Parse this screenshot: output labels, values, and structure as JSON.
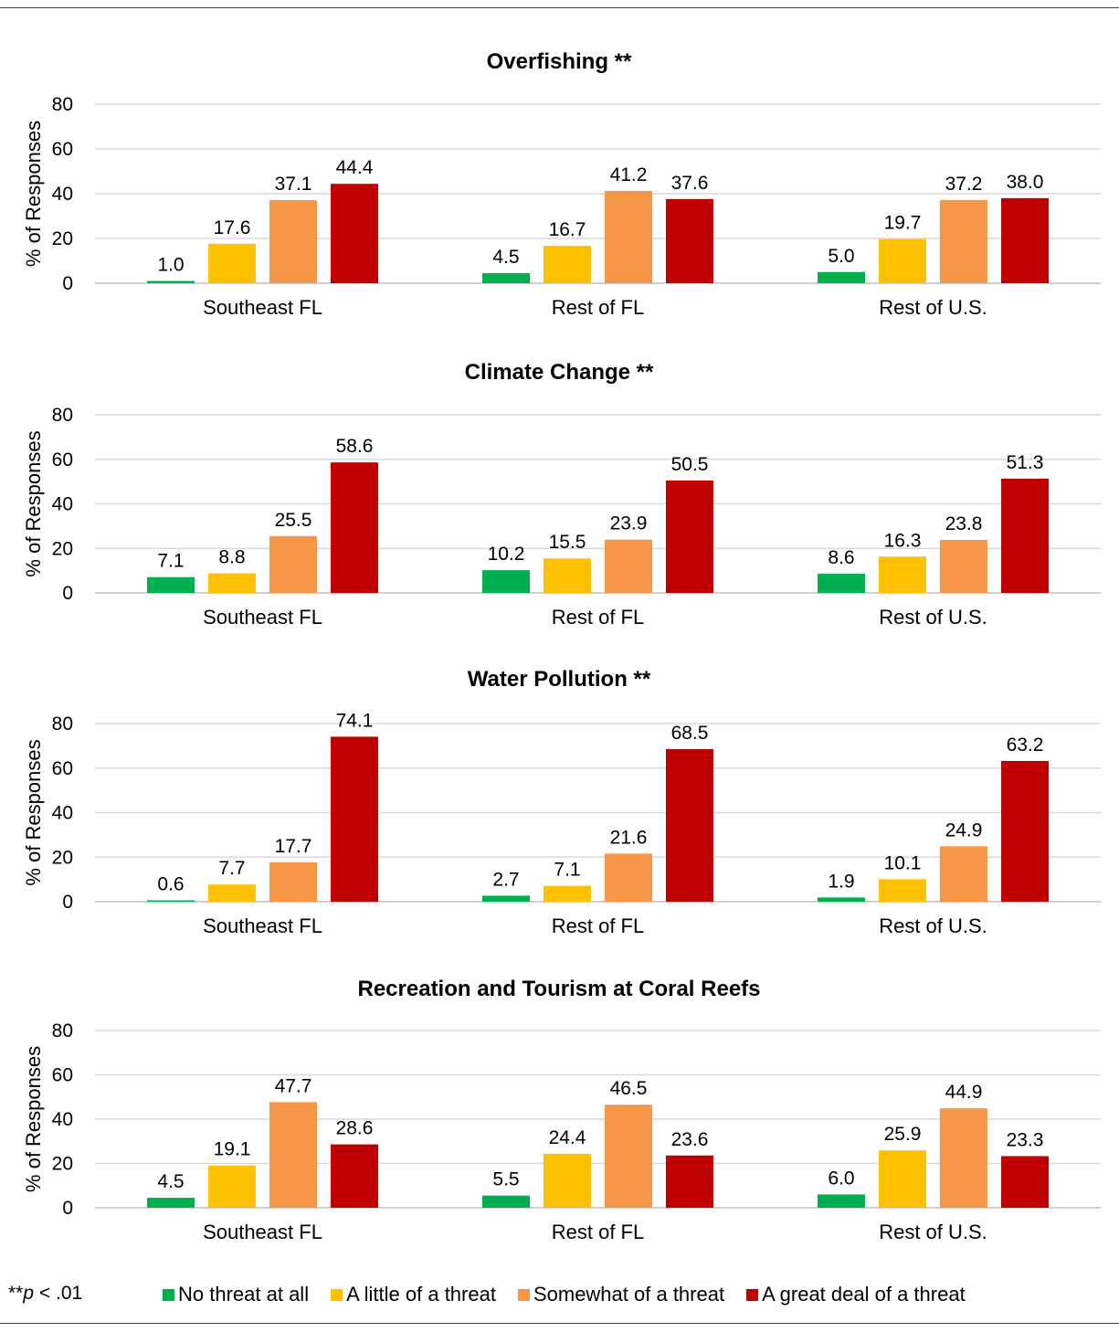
{
  "colors": {
    "none": "#00b050",
    "little": "#ffc000",
    "somewhat": "#f79646",
    "great": "#c00000",
    "grid": "#d9d9d9"
  },
  "chart_data": [
    {
      "type": "bar",
      "title": "Overfishing **",
      "ylabel": "% of Responses",
      "ylim": [
        0,
        80
      ],
      "yticks": [
        0,
        20,
        40,
        60,
        80
      ],
      "categories": [
        "Southeast FL",
        "Rest of FL",
        "Rest of U.S."
      ],
      "series": [
        {
          "name": "No threat at all",
          "values": [
            1.0,
            4.5,
            5.0
          ]
        },
        {
          "name": "A little of a threat",
          "values": [
            17.6,
            16.7,
            19.7
          ]
        },
        {
          "name": "Somewhat of a threat",
          "values": [
            37.1,
            41.2,
            37.2
          ]
        },
        {
          "name": "A great deal of a threat",
          "values": [
            44.4,
            37.6,
            38.0
          ]
        }
      ]
    },
    {
      "type": "bar",
      "title": "Climate Change **",
      "ylabel": "% of Responses",
      "ylim": [
        0,
        80
      ],
      "yticks": [
        0,
        20,
        40,
        60,
        80
      ],
      "categories": [
        "Southeast FL",
        "Rest of FL",
        "Rest of U.S."
      ],
      "series": [
        {
          "name": "No threat at all",
          "values": [
            7.1,
            10.2,
            8.6
          ]
        },
        {
          "name": "A little of a threat",
          "values": [
            8.8,
            15.5,
            16.3
          ]
        },
        {
          "name": "Somewhat of a threat",
          "values": [
            25.5,
            23.9,
            23.8
          ]
        },
        {
          "name": "A great deal of a threat",
          "values": [
            58.6,
            50.5,
            51.3
          ]
        }
      ]
    },
    {
      "type": "bar",
      "title": "Water Pollution **",
      "ylabel": "% of Responses",
      "ylim": [
        0,
        80
      ],
      "yticks": [
        0,
        20,
        40,
        60,
        80
      ],
      "categories": [
        "Southeast FL",
        "Rest of FL",
        "Rest of U.S."
      ],
      "series": [
        {
          "name": "No threat at all",
          "values": [
            0.6,
            2.7,
            1.9
          ]
        },
        {
          "name": "A little of a threat",
          "values": [
            7.7,
            7.1,
            10.1
          ]
        },
        {
          "name": "Somewhat of a threat",
          "values": [
            17.7,
            21.6,
            24.9
          ]
        },
        {
          "name": "A great deal of a threat",
          "values": [
            74.1,
            68.5,
            63.2
          ]
        }
      ]
    },
    {
      "type": "bar",
      "title": "Recreation and Tourism at Coral Reefs",
      "ylabel": "% of Responses",
      "ylim": [
        0,
        80
      ],
      "yticks": [
        0,
        20,
        40,
        60,
        80
      ],
      "categories": [
        "Southeast FL",
        "Rest of FL",
        "Rest of U.S."
      ],
      "series": [
        {
          "name": "No threat at all",
          "values": [
            4.5,
            5.5,
            6.0
          ]
        },
        {
          "name": "A little of a threat",
          "values": [
            19.1,
            24.4,
            25.9
          ]
        },
        {
          "name": "Somewhat of a threat",
          "values": [
            47.7,
            46.5,
            44.9
          ]
        },
        {
          "name": "A great deal of a threat",
          "values": [
            28.6,
            23.6,
            23.3
          ]
        }
      ]
    }
  ],
  "legend": {
    "items": [
      {
        "label": "No threat at all",
        "color_key": "none"
      },
      {
        "label": "A little of a threat",
        "color_key": "little"
      },
      {
        "label": "Somewhat of a threat",
        "color_key": "somewhat"
      },
      {
        "label": "A great deal of a threat",
        "color_key": "great"
      }
    ]
  },
  "footnote": {
    "stars": "**",
    "p": "p",
    "rest": " < .01"
  }
}
